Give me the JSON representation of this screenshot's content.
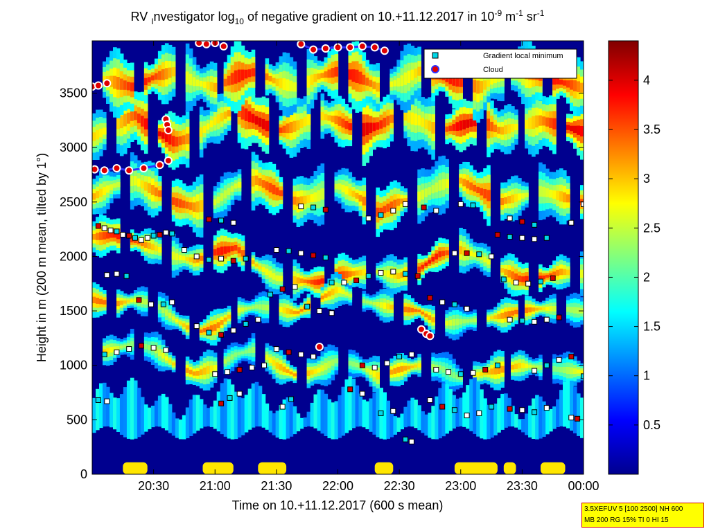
{
  "chart_data": {
    "type": "heatmap",
    "title": {
      "p1": "RV ",
      "sub1": "I",
      "p2": "nvestigator log",
      "sub2": "10",
      "p3": " of negative gradient on 10.+11.12.2017 in 10",
      "sup1": "-9",
      "p4": " m",
      "sup2": "-1",
      "p5": " sr",
      "sup3": "-1"
    },
    "xlabel": "Time on 10.+11.12.2017 (600 s mean)",
    "ylabel": "Height in m (200 m mean, tilted by 1°)",
    "x_ticks": [
      {
        "value": 20.5,
        "label": "20:30"
      },
      {
        "value": 21.0,
        "label": "21:00"
      },
      {
        "value": 21.5,
        "label": "21:30"
      },
      {
        "value": 22.0,
        "label": "22:00"
      },
      {
        "value": 22.5,
        "label": "22:30"
      },
      {
        "value": 23.0,
        "label": "23:00"
      },
      {
        "value": 23.5,
        "label": "23:30"
      },
      {
        "value": 24.0,
        "label": "00:00"
      }
    ],
    "xlim": [
      20.0,
      24.0
    ],
    "y_ticks": [
      {
        "value": 0,
        "label": "0"
      },
      {
        "value": 500,
        "label": "500"
      },
      {
        "value": 1000,
        "label": "1000"
      },
      {
        "value": 1500,
        "label": "1500"
      },
      {
        "value": 2000,
        "label": "2000"
      },
      {
        "value": 2500,
        "label": "2500"
      },
      {
        "value": 3000,
        "label": "3000"
      },
      {
        "value": 3500,
        "label": "3500"
      }
    ],
    "ylim": [
      0,
      3980
    ],
    "colorbar": {
      "ticks": [
        {
          "value": 0.5,
          "label": "0.5"
        },
        {
          "value": 1,
          "label": "1"
        },
        {
          "value": 1.5,
          "label": "1.5"
        },
        {
          "value": 2,
          "label": "2"
        },
        {
          "value": 2.5,
          "label": "2.5"
        },
        {
          "value": 3,
          "label": "3"
        },
        {
          "value": 3.5,
          "label": "3.5"
        },
        {
          "value": 4,
          "label": "4"
        }
      ],
      "range": [
        0.0,
        4.4
      ],
      "colormap": "jet"
    },
    "legend": {
      "placement": "top-right",
      "entries": [
        {
          "label": "Gradient local minimum",
          "marker": "square",
          "color": "#00d8e8"
        },
        {
          "label": "Cloud",
          "marker": "circle",
          "color": "#e00000"
        }
      ]
    },
    "layers": [
      {
        "center": [
          2180,
          2200,
          2140,
          2080,
          2000,
          1960,
          2040,
          2080,
          1920,
          1800,
          1780,
          1760,
          1820,
          1850,
          1860,
          1820,
          1880,
          2020,
          2060,
          2000,
          1880,
          1790,
          1800,
          1860,
          1840
        ],
        "thickness": 100,
        "strength": 0.95
      },
      {
        "center": [
          1600,
          1560,
          1600,
          1570,
          1420,
          1300,
          1350,
          1500,
          1540,
          1520,
          1480,
          1600,
          1700,
          1600,
          1560,
          1520,
          1500,
          1380,
          1400,
          1420,
          1450,
          1500,
          1520,
          1520,
          1500
        ],
        "thickness": 80,
        "strength": 0.85
      },
      {
        "center": [
          1100,
          1150,
          1200,
          1150,
          1000,
          920,
          980,
          1100,
          1150,
          1000,
          900,
          950,
          1050,
          1000,
          900,
          960,
          1000,
          980,
          880,
          920,
          960,
          1000,
          980,
          960,
          940
        ],
        "thickness": 90,
        "strength": 0.8
      },
      {
        "center": [
          2550,
          2650,
          2700,
          2600,
          2500,
          2450,
          2500,
          2650,
          2700,
          2600,
          2500,
          2550,
          2650,
          2550,
          2400,
          2500,
          2550,
          2650,
          2700,
          2600,
          2500,
          2550,
          2600,
          2550,
          2500
        ],
        "thickness": 140,
        "strength": 0.9
      },
      {
        "center": [
          3100,
          3200,
          3300,
          3150,
          3050,
          3100,
          3250,
          3350,
          3250,
          3150,
          3200,
          3300,
          3250,
          3150,
          3200,
          3300,
          3250,
          3150,
          3200,
          3250,
          3150,
          3200,
          3250,
          3200,
          3150
        ],
        "thickness": 160,
        "strength": 1.0
      },
      {
        "center": [
          3650,
          3600,
          3550,
          3650,
          3700,
          3600,
          3550,
          3650,
          3700,
          3600,
          3550,
          3650,
          3700,
          3650,
          3550,
          3600,
          3700,
          3650,
          3600,
          3550,
          3650,
          3700,
          3650,
          3600,
          3550
        ],
        "thickness": 160,
        "strength": 0.95
      }
    ],
    "cloud_segments": [
      {
        "x": [
          20.02,
          20.1,
          20.2,
          20.3,
          20.42,
          20.55,
          20.62
        ],
        "y": [
          2800,
          2790,
          2810,
          2790,
          2810,
          2840,
          2880
        ]
      },
      {
        "x": [
          20.0,
          20.05,
          20.12
        ],
        "y": [
          3560,
          3570,
          3590
        ]
      },
      {
        "x": [
          20.6,
          20.61,
          20.62
        ],
        "y": [
          3260,
          3210,
          3160
        ]
      },
      {
        "x": [
          20.87,
          20.93,
          21.0,
          21.07
        ],
        "y": [
          3960,
          3950,
          3960,
          3930
        ]
      },
      {
        "x": [
          21.7,
          21.8,
          21.9,
          22.0,
          22.1,
          22.2,
          22.3,
          22.38
        ],
        "y": [
          3950,
          3900,
          3910,
          3920,
          3920,
          3930,
          3920,
          3890
        ]
      },
      {
        "x": [
          21.85
        ],
        "y": [
          1170
        ]
      },
      {
        "x": [
          22.68,
          22.72,
          22.75
        ],
        "y": [
          1330,
          1290,
          1270
        ]
      }
    ],
    "minimum_markers": [
      {
        "x": [
          20.05,
          20.1,
          20.15,
          20.2,
          20.25,
          20.3,
          20.35,
          20.4,
          20.45,
          20.5,
          20.55,
          20.6,
          20.65
        ],
        "y": [
          2280,
          2260,
          2240,
          2230,
          2200,
          2190,
          2170,
          2150,
          2170,
          2190,
          2200,
          2220,
          2210
        ]
      },
      {
        "x": [
          20.75,
          20.85,
          20.95,
          21.05,
          21.15,
          21.25
        ],
        "y": [
          2060,
          2000,
          1970,
          1980,
          1960,
          1980
        ]
      },
      {
        "x": [
          21.5,
          21.6,
          21.7,
          21.8,
          21.9
        ],
        "y": [
          2060,
          2050,
          2030,
          2010,
          1990
        ]
      },
      {
        "x": [
          21.95,
          22.05,
          22.15,
          22.25,
          22.35,
          22.45,
          22.55,
          22.65
        ],
        "y": [
          1760,
          1760,
          1780,
          1820,
          1850,
          1860,
          1840,
          1820
        ]
      },
      {
        "x": [
          22.95,
          23.05,
          23.15,
          23.25
        ],
        "y": [
          2030,
          2030,
          2020,
          2000
        ]
      },
      {
        "x": [
          23.3,
          23.4,
          23.5,
          23.6,
          23.7
        ],
        "y": [
          2200,
          2180,
          2170,
          2160,
          2170
        ]
      },
      {
        "x": [
          23.35,
          23.45,
          23.55,
          23.65,
          23.75
        ],
        "y": [
          1790,
          1760,
          1750,
          1770,
          1800
        ]
      },
      {
        "x": [
          20.12,
          20.2,
          20.28,
          20.38,
          20.48,
          20.58,
          20.65
        ],
        "y": [
          1830,
          1840,
          1820,
          1600,
          1560,
          1560,
          1580
        ]
      },
      {
        "x": [
          20.85,
          20.95,
          21.05,
          21.15,
          21.25,
          21.35
        ],
        "y": [
          1360,
          1300,
          1280,
          1320,
          1380,
          1420
        ]
      },
      {
        "x": [
          21.45,
          21.55,
          21.65,
          21.75,
          21.85,
          21.95
        ],
        "y": [
          1650,
          1700,
          1720,
          1540,
          1500,
          1480
        ]
      },
      {
        "x": [
          22.75,
          22.85,
          22.95,
          23.05
        ],
        "y": [
          1620,
          1580,
          1560,
          1520
        ]
      },
      {
        "x": [
          23.4,
          23.5,
          23.6,
          23.7,
          23.8
        ],
        "y": [
          1420,
          1410,
          1400,
          1420,
          1440
        ]
      },
      {
        "x": [
          20.1,
          20.2,
          20.3,
          20.4,
          20.5,
          20.6
        ],
        "y": [
          1100,
          1120,
          1150,
          1180,
          1160,
          1140
        ]
      },
      {
        "x": [
          21.0,
          21.1,
          21.2,
          21.3,
          21.4
        ],
        "y": [
          920,
          940,
          960,
          980,
          1000
        ]
      },
      {
        "x": [
          21.5,
          21.6,
          21.7,
          21.8
        ],
        "y": [
          1150,
          1120,
          1100,
          1080
        ]
      },
      {
        "x": [
          22.2,
          22.3,
          22.4,
          22.5,
          22.6
        ],
        "y": [
          1000,
          980,
          1020,
          1080,
          1100
        ]
      },
      {
        "x": [
          22.8,
          22.9,
          23.0,
          23.1,
          23.2,
          23.3
        ],
        "y": [
          960,
          940,
          920,
          930,
          960,
          1000
        ]
      },
      {
        "x": [
          23.6,
          23.7,
          23.8,
          23.9,
          24.0
        ],
        "y": [
          950,
          1000,
          1050,
          1080,
          900
        ]
      },
      {
        "x": [
          20.05,
          20.12,
          21.05,
          21.12,
          21.2,
          21.55,
          21.62,
          22.1,
          22.2,
          22.35,
          22.45
        ],
        "y": [
          680,
          670,
          650,
          700,
          740,
          620,
          690,
          780,
          740,
          560,
          580
        ]
      },
      {
        "x": [
          22.75,
          22.85,
          22.95,
          23.05,
          23.15,
          23.25,
          23.4,
          23.5,
          23.6,
          23.7,
          23.9,
          23.95
        ],
        "y": [
          680,
          620,
          590,
          540,
          560,
          620,
          600,
          590,
          570,
          610,
          520,
          510
        ]
      },
      {
        "x": [
          20.95,
          21.05,
          21.15,
          21.7,
          21.8,
          21.9,
          22.25,
          22.35,
          22.45,
          22.55,
          22.7,
          22.8,
          23.0,
          23.1,
          23.4,
          23.5,
          23.6,
          23.9,
          24.0
        ],
        "y": [
          2340,
          2330,
          2310,
          2460,
          2450,
          2430,
          2350,
          2380,
          2420,
          2480,
          2450,
          2420,
          2480,
          2470,
          2350,
          2320,
          2290,
          2310,
          2480
        ]
      },
      {
        "x": [
          22.55,
          22.6
        ],
        "y": [
          320,
          300
        ]
      }
    ]
  },
  "info_box": {
    "line1": "3.5XEFUV 5 [100 2500] NH 600",
    "line2": "MB 200 RG 15% TI 0 HI 15"
  }
}
